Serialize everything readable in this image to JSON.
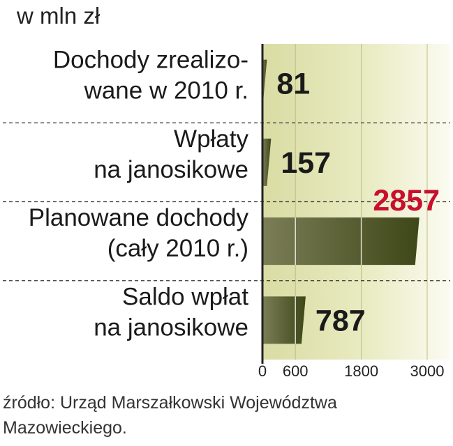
{
  "unit_label": "w mln zł",
  "source": "źródło: Urząd Marszałkowski Województwa Mazowieckiego.",
  "colors": {
    "bar_dark": "#3e4718",
    "bar_light": "#7b7e56",
    "highlight_value": "#c8102e",
    "background_band": "#e9ebc2",
    "axis": "#222222"
  },
  "chart_data": {
    "type": "bar",
    "orientation": "horizontal",
    "categories": [
      [
        "Dochody zrealizo-",
        "wane w 2010 r."
      ],
      [
        "Wpłaty",
        "na janosikowe"
      ],
      [
        "Planowane dochody",
        "(cały 2010 r.)"
      ],
      [
        "Saldo wpłat",
        "na janosikowe"
      ]
    ],
    "values": [
      81,
      157,
      2857,
      787
    ],
    "value_labels": [
      "81",
      "157",
      "2857",
      "787"
    ],
    "highlight_index": 2,
    "xticks": [
      0,
      600,
      1800,
      3000
    ],
    "xtick_labels": [
      "0",
      "600",
      "1800",
      "3000"
    ],
    "xlim": [
      0,
      3000
    ],
    "grid": true
  }
}
